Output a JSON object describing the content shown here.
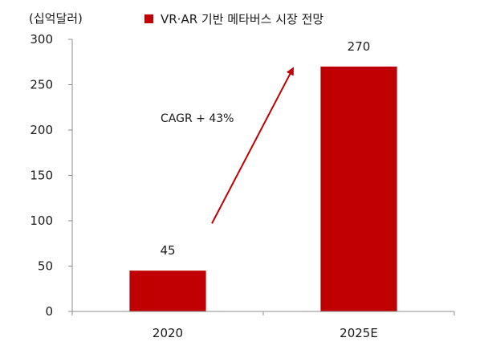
{
  "chart_data": {
    "type": "bar",
    "categories": [
      "2020",
      "2025E"
    ],
    "series": [
      {
        "name": "VR·AR 기반 메타버스 시장 전망",
        "values": [
          45,
          270
        ],
        "color": "#c00000"
      }
    ],
    "unit_label": "(십억달러)",
    "ylim": [
      0,
      300
    ],
    "yticks": [
      0,
      50,
      100,
      150,
      200,
      250,
      300
    ],
    "data_labels": [
      "45",
      "270"
    ],
    "annotation": "CAGR + 43%",
    "legend_position": "top",
    "grid": false
  }
}
